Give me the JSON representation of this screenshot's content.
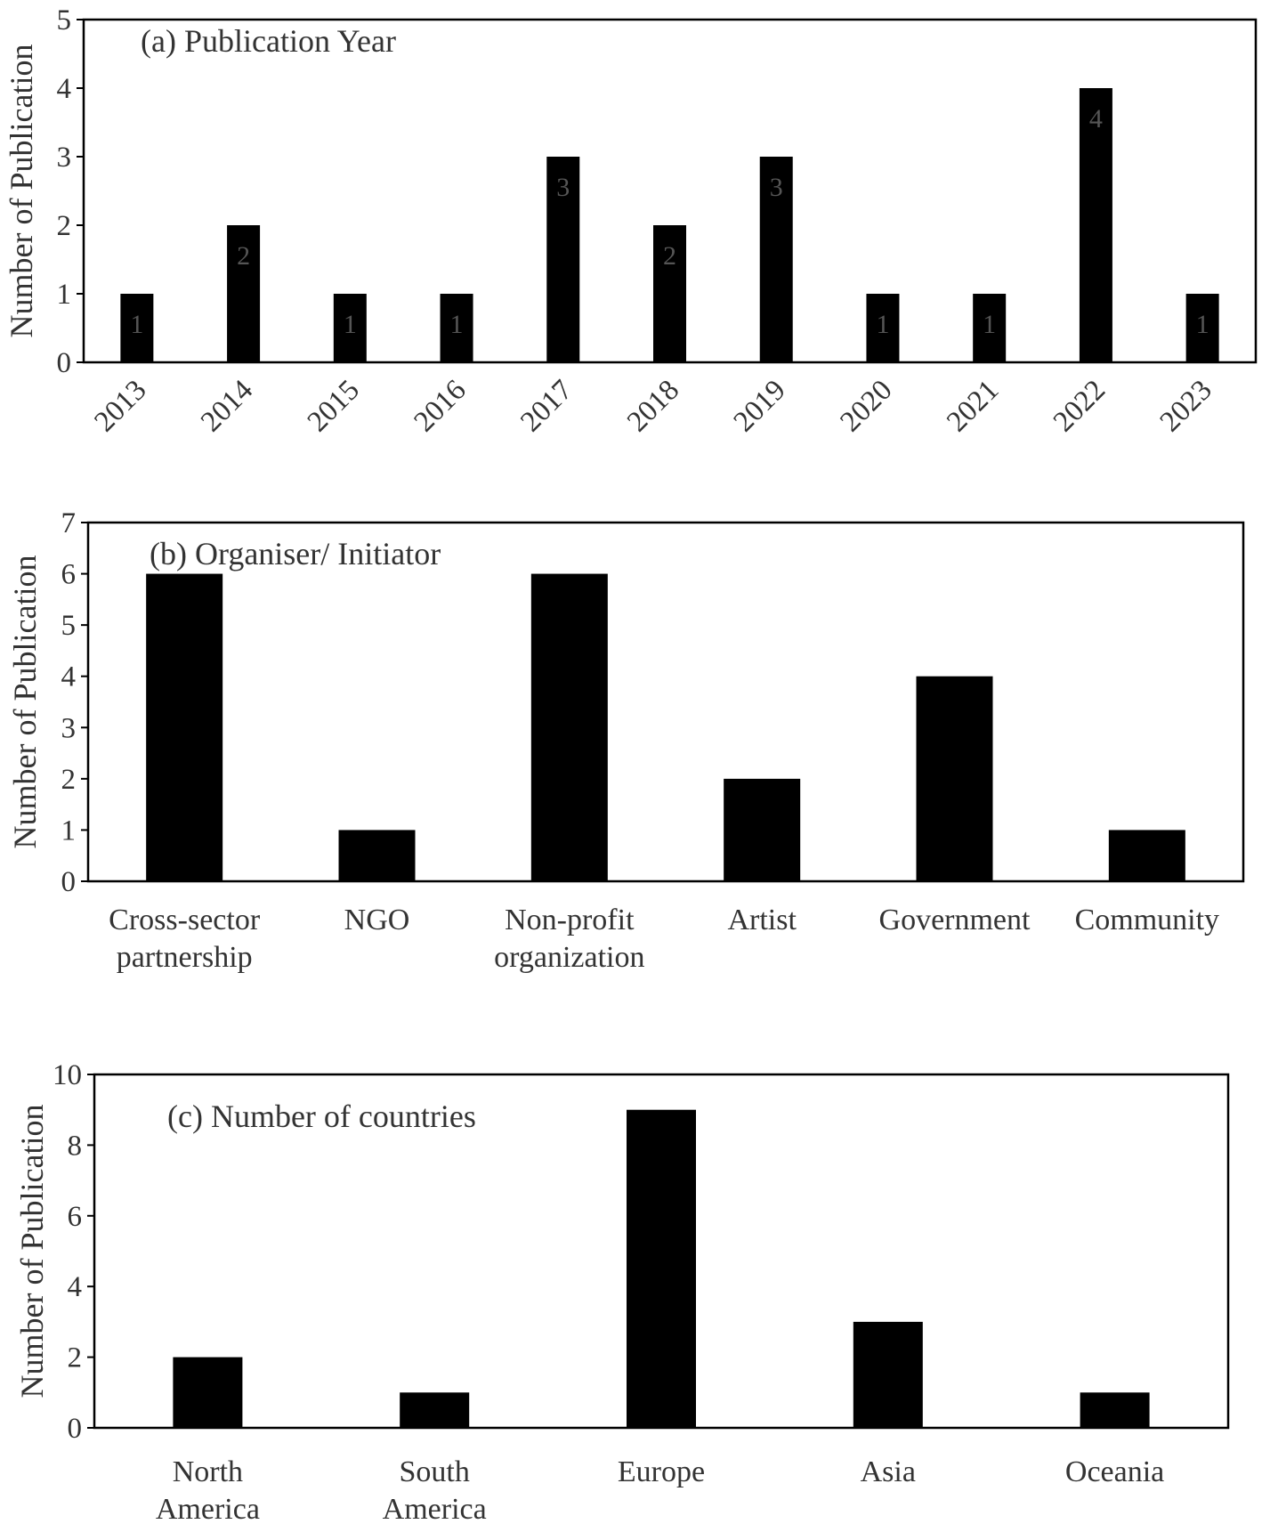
{
  "chart_data": [
    {
      "type": "bar",
      "title": "(a) Publication Year",
      "ylabel": "Number of Publication",
      "xlabel": "",
      "ylim": [
        0,
        5
      ],
      "yticks": [
        0,
        1,
        2,
        3,
        4,
        5
      ],
      "categories": [
        "2013",
        "2014",
        "2015",
        "2016",
        "2017",
        "2018",
        "2019",
        "2020",
        "2021",
        "2022",
        "2023"
      ],
      "values": [
        1,
        2,
        1,
        1,
        3,
        2,
        3,
        1,
        1,
        4,
        1
      ],
      "data_labels": [
        "1",
        "2",
        "1",
        "1",
        "3",
        "2",
        "3",
        "1",
        "1",
        "4",
        "1"
      ],
      "grid": false,
      "bar_color": "#000000"
    },
    {
      "type": "bar",
      "title": "(b) Organiser/ Initiator",
      "ylabel": "Number of Publication",
      "xlabel": "",
      "ylim": [
        0,
        7
      ],
      "yticks": [
        0,
        1,
        2,
        3,
        4,
        5,
        6,
        7
      ],
      "categories": [
        "Cross-sector partnership",
        "NGO",
        "Non-profit organization",
        "Artist",
        "Government",
        "Community"
      ],
      "values": [
        6,
        1,
        6,
        2,
        4,
        1
      ],
      "grid": false,
      "bar_color": "#000000"
    },
    {
      "type": "bar",
      "title": "(c) Number of countries",
      "ylabel": "Number of Publication",
      "xlabel": "",
      "ylim": [
        0,
        10
      ],
      "yticks": [
        0,
        2,
        4,
        6,
        8,
        10
      ],
      "categories": [
        "North America",
        "South America",
        "Europe",
        "Asia",
        "Oceania"
      ],
      "values": [
        2,
        1,
        9,
        3,
        1
      ],
      "grid": false,
      "bar_color": "#000000"
    }
  ]
}
